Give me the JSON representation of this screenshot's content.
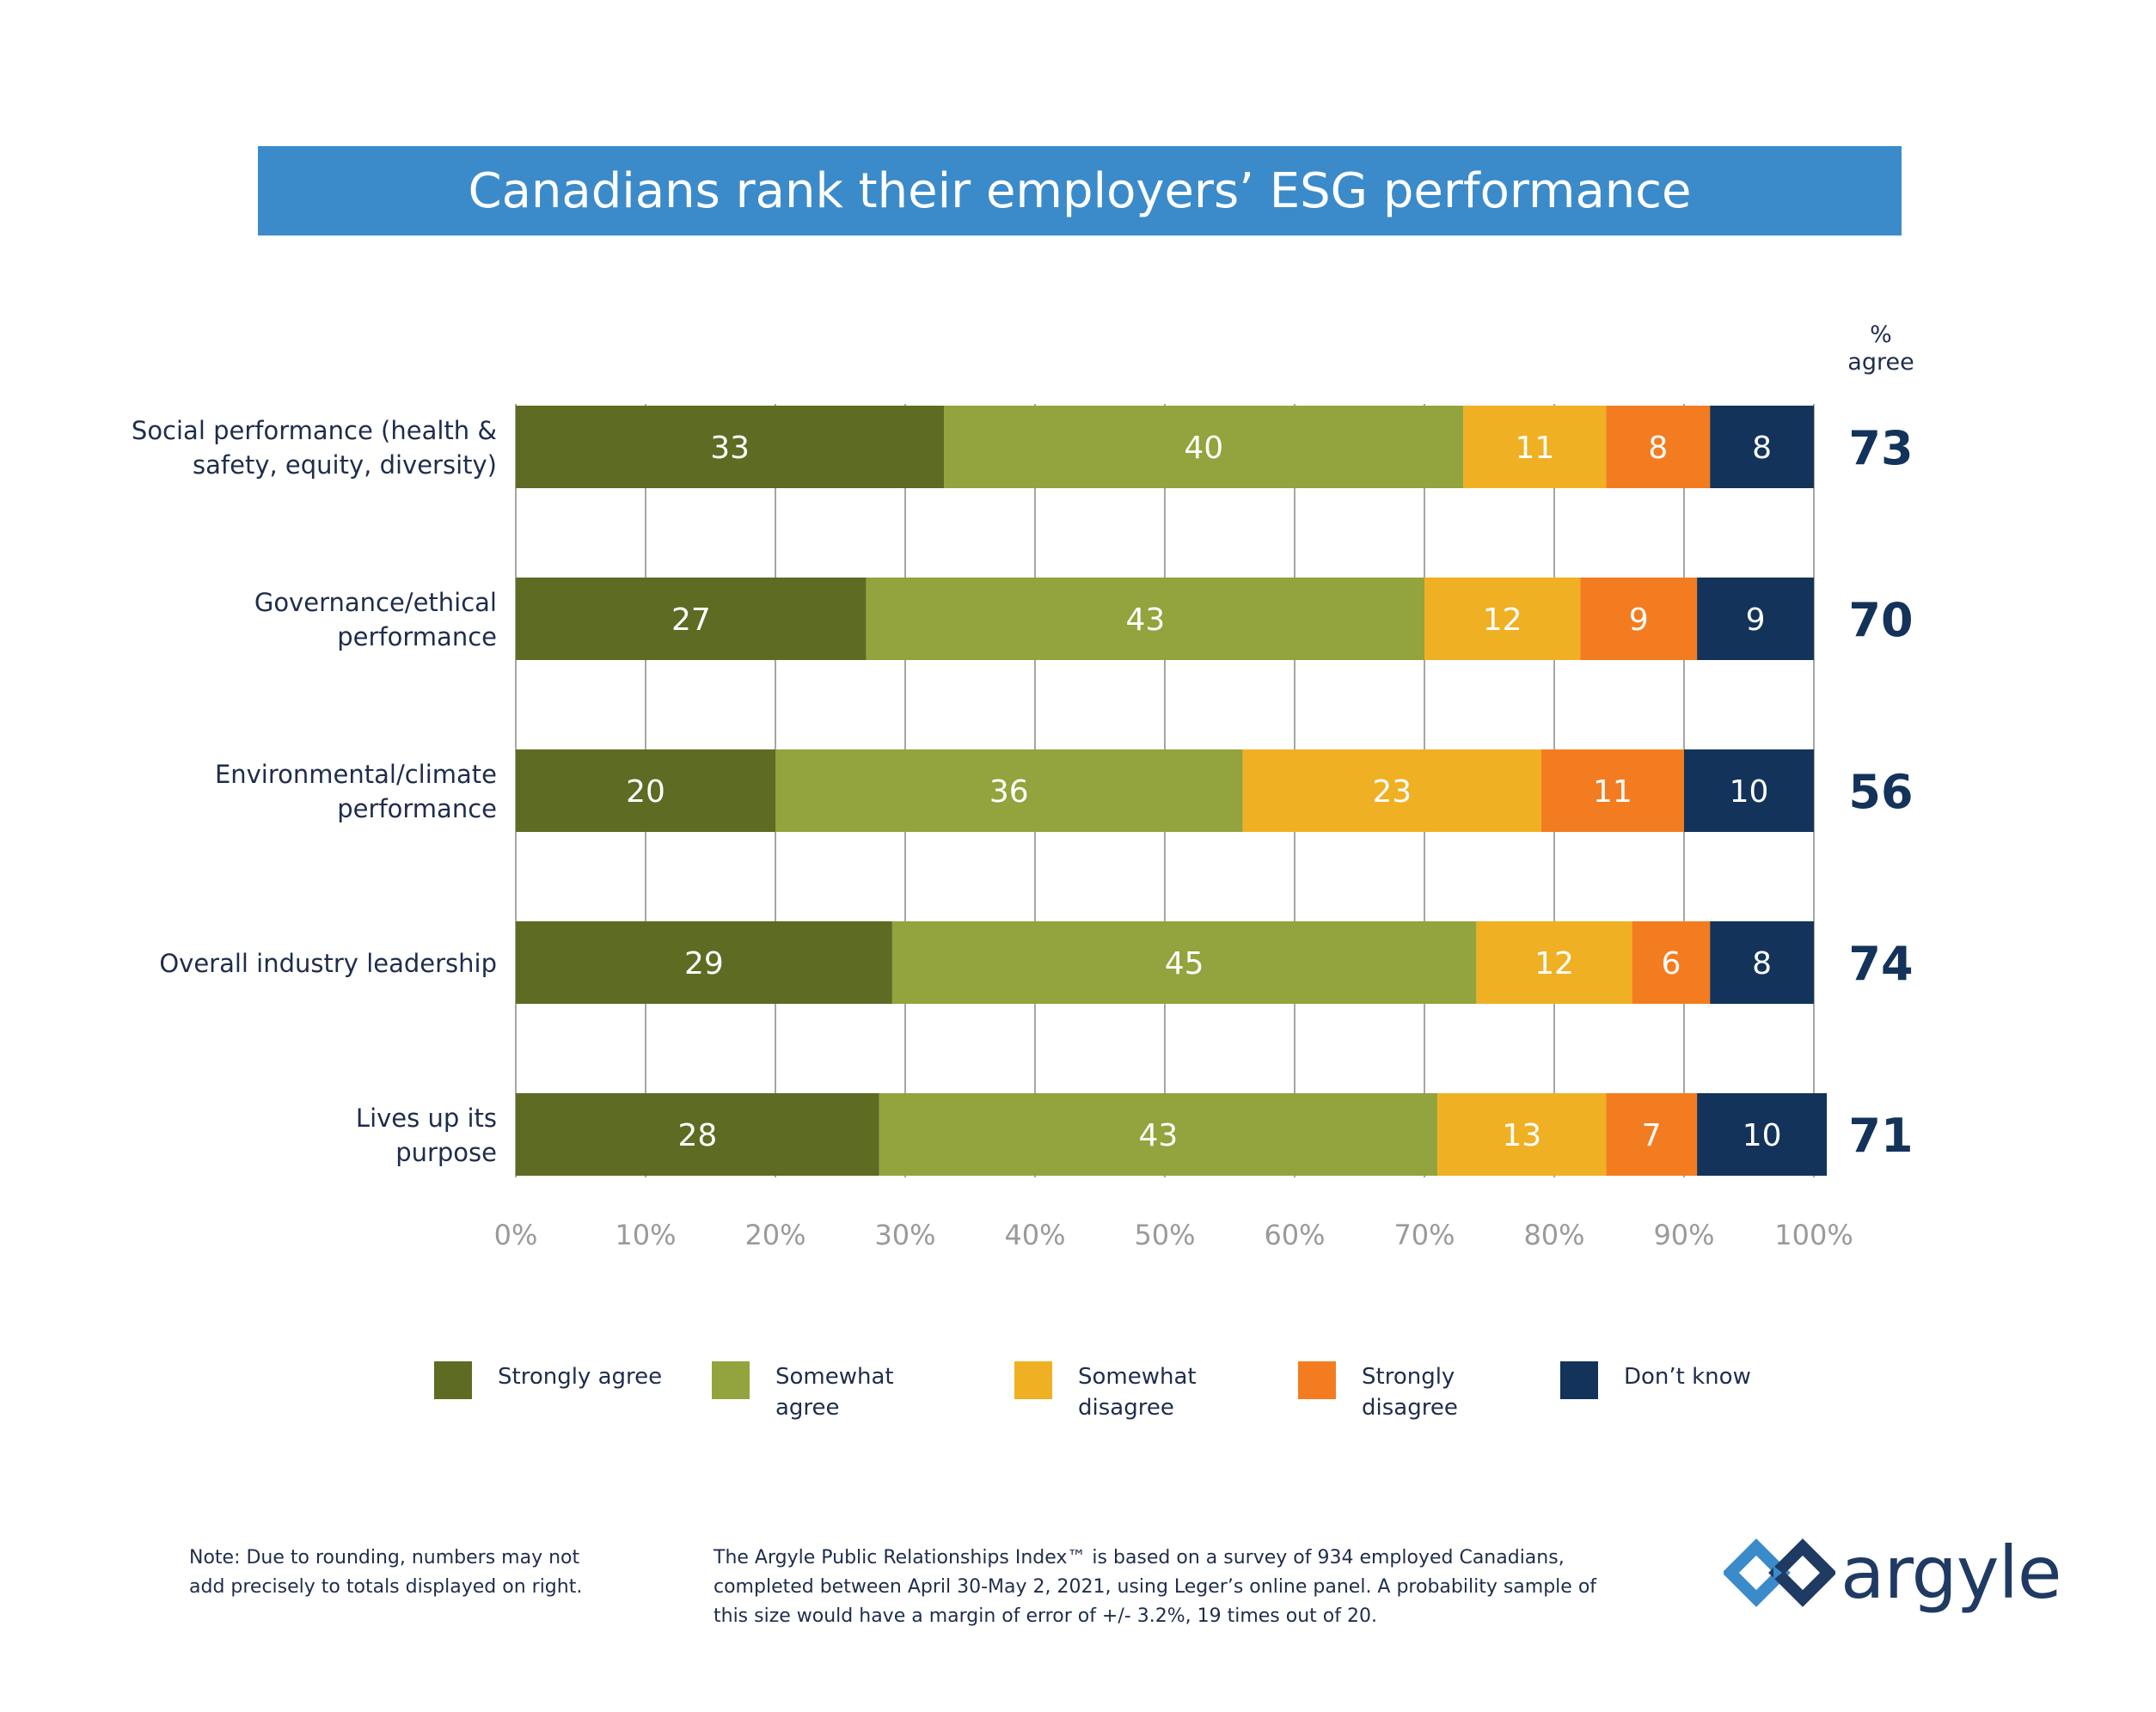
{
  "title": "Canadians rank their employers’ ESG performance",
  "agree_header": [
    "%",
    "agree"
  ],
  "chart_data": {
    "type": "bar",
    "orientation": "horizontal",
    "stacked": true,
    "title": "Canadians rank their employers’ ESG performance",
    "categories": [
      [
        "Social performance (health &",
        "safety, equity, diversity)"
      ],
      [
        "Governance/ethical",
        "performance"
      ],
      [
        "Environmental/climate",
        "performance"
      ],
      [
        "Overall industry leadership"
      ],
      [
        "Lives up its",
        "purpose"
      ]
    ],
    "series": [
      {
        "name": "Strongly agree",
        "color": "#5d6b23",
        "label_color": "#ffffff",
        "values": [
          33,
          27,
          20,
          29,
          28
        ]
      },
      {
        "name": "Somewhat agree",
        "color": "#93a33d",
        "label_color": "#ffffff",
        "values": [
          40,
          43,
          36,
          45,
          43
        ]
      },
      {
        "name": "Somewhat disagree",
        "color": "#f0b023",
        "label_color": "#ffffff",
        "values": [
          11,
          12,
          23,
          12,
          13
        ]
      },
      {
        "name": "Strongly disagree",
        "color": "#f47c20",
        "label_color": "#ffffff",
        "values": [
          8,
          9,
          11,
          6,
          7
        ]
      },
      {
        "name": "Don’t know",
        "color": "#13335a",
        "label_color": "#ffffff",
        "values": [
          8,
          9,
          10,
          8,
          10
        ]
      }
    ],
    "agree_totals": [
      73,
      70,
      56,
      74,
      71
    ],
    "xlim": [
      0,
      100
    ],
    "xticks": [
      "0%",
      "10%",
      "20%",
      "30%",
      "40%",
      "50%",
      "60%",
      "70%",
      "80%",
      "90%",
      "100%"
    ],
    "grid": "vertical",
    "legend_position": "bottom"
  },
  "legend": [
    {
      "label": "Strongly agree",
      "color": "#5d6b23"
    },
    {
      "label": "Somewhat agree",
      "color": "#93a33d"
    },
    {
      "label": "Somewhat disagree",
      "color": "#f0b023"
    },
    {
      "label": "Strongly disagree",
      "color": "#f47c20"
    },
    {
      "label": "Don’t know",
      "color": "#13335a"
    }
  ],
  "notes": {
    "left": "Note: Due to rounding, numbers may not add precisely to totals displayed on right.",
    "right": "The Argyle Public Relationships Index™ is based on a survey of 934 employed Canadians, completed between  April 30-May 2, 2021, using Leger’s online panel. A probability sample of this size would have a margin of error of +/- 3.2%, 19 times out of 20."
  },
  "logo": {
    "text": "argyle",
    "icon": "argyle-diamond-logo-icon",
    "colors": [
      "#3b8bca",
      "#1f3a63"
    ]
  }
}
